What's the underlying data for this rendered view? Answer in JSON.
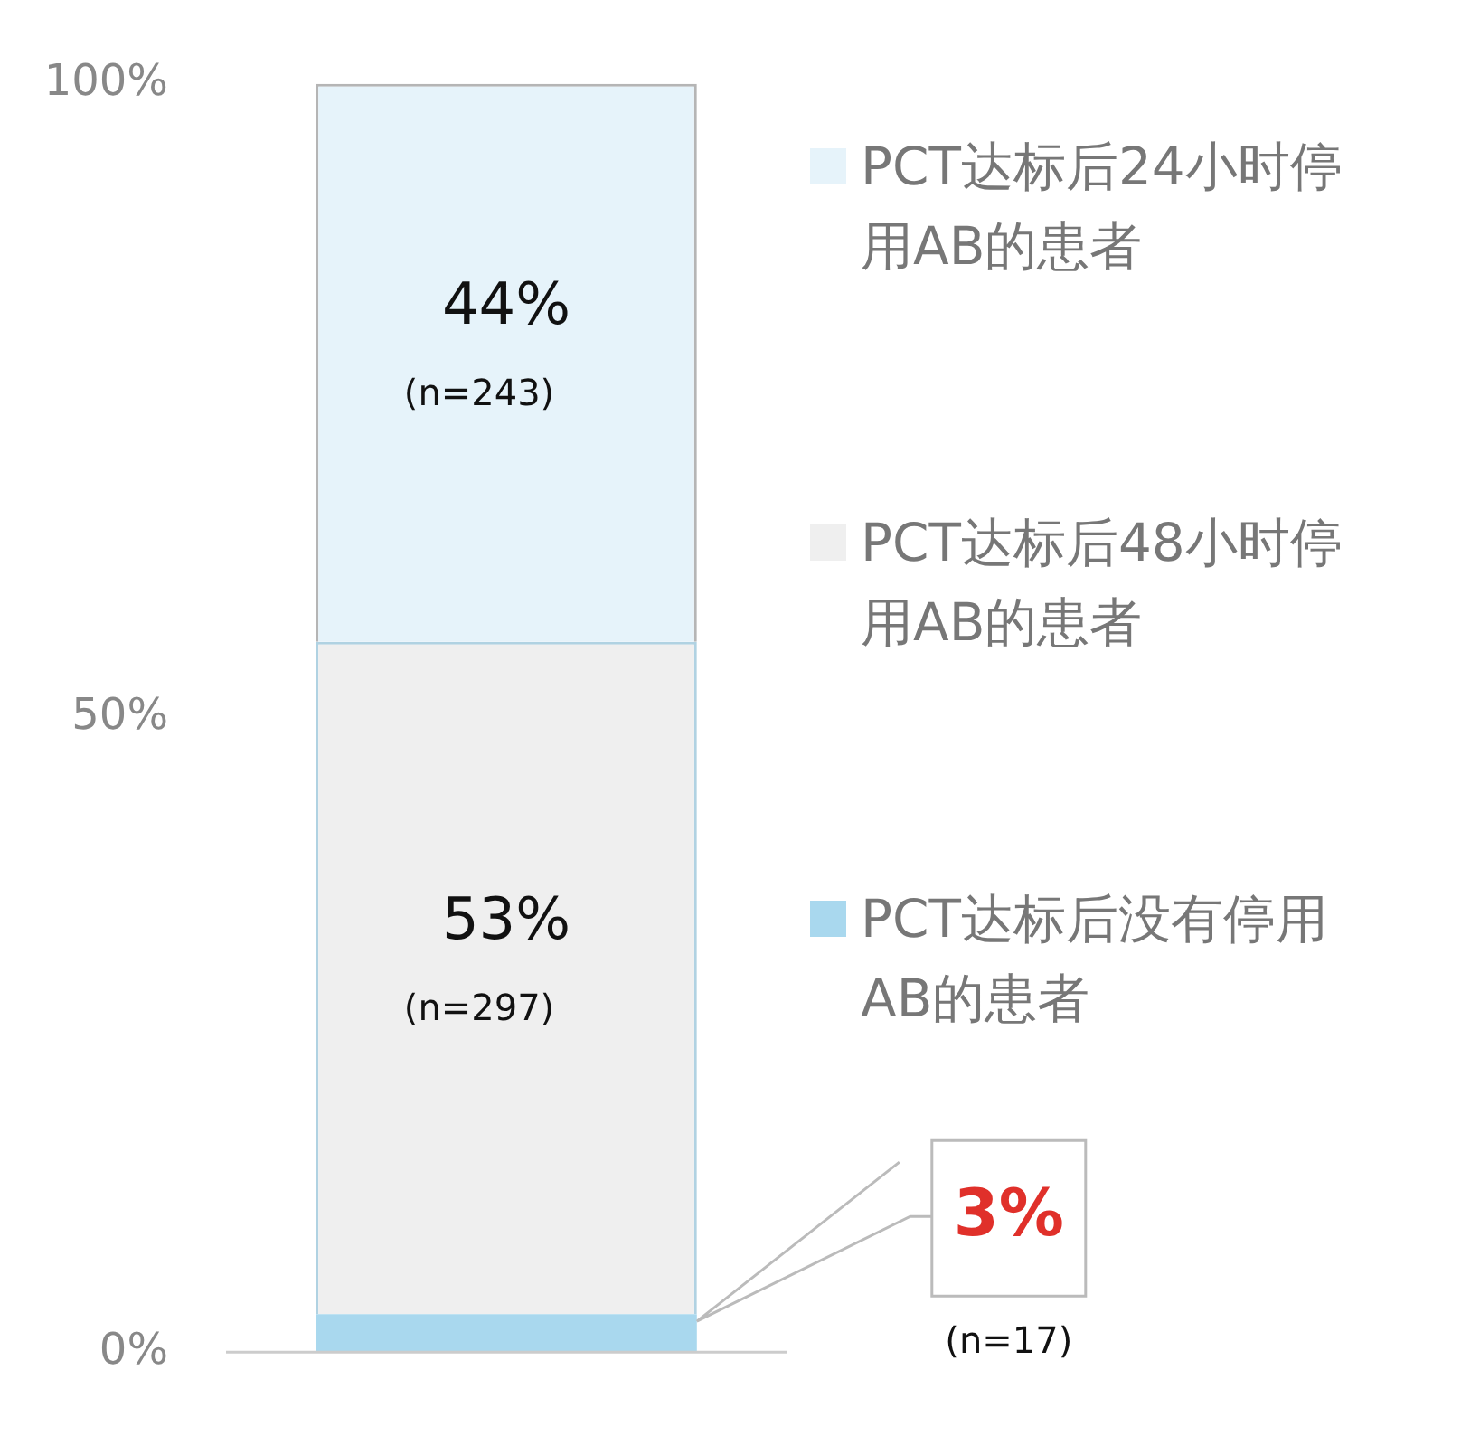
{
  "chart_data": {
    "type": "bar",
    "stacked": true,
    "categories": [
      null
    ],
    "series": [
      {
        "name": "PCT达标后没有停用AB的患者",
        "color": "#a9d8ee",
        "values": [
          3
        ],
        "value_labels": [
          "3%"
        ]
      },
      {
        "name": "PCT达标后48小时停用AB的患者",
        "color": "#efefef",
        "values": [
          53
        ],
        "value_labels": [
          "53%"
        ]
      },
      {
        "name": "PCT达标后24小时停用AB的患者",
        "color": "#e6f3fa",
        "values": [
          44
        ],
        "value_labels": [
          "44%"
        ]
      }
    ],
    "annotations": [
      "(n=17)",
      "(n=297)",
      "(n=243)"
    ],
    "ylim": [
      0,
      100
    ],
    "yticks": [
      {
        "value": 0,
        "label": "0%"
      },
      {
        "value": 50,
        "label": "50%"
      },
      {
        "value": 100,
        "label": "100%"
      }
    ],
    "grid": false,
    "legend": "right"
  }
}
